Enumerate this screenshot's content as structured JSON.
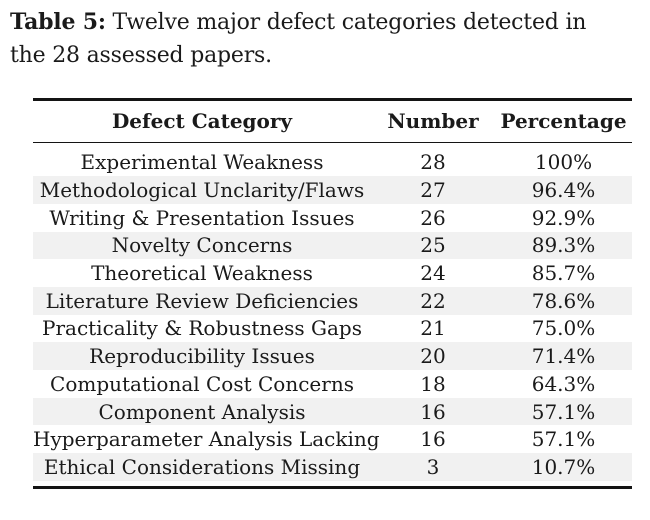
{
  "caption": {
    "label": "Table 5:",
    "line1": "Twelve major defect categories detected in",
    "line2": "the 28 assessed papers."
  },
  "table": {
    "headers": {
      "category": "Defect Category",
      "number": "Number",
      "percentage": "Percentage"
    },
    "rows": [
      {
        "category": "Experimental Weakness",
        "number": "28",
        "percentage": "100%"
      },
      {
        "category": "Methodological Unclarity/Flaws",
        "number": "27",
        "percentage": "96.4%"
      },
      {
        "category": "Writing & Presentation Issues",
        "number": "26",
        "percentage": "92.9%"
      },
      {
        "category": "Novelty Concerns",
        "number": "25",
        "percentage": "89.3%"
      },
      {
        "category": "Theoretical Weakness",
        "number": "24",
        "percentage": "85.7%"
      },
      {
        "category": "Literature Review Deficiencies",
        "number": "22",
        "percentage": "78.6%"
      },
      {
        "category": "Practicality & Robustness Gaps",
        "number": "21",
        "percentage": "75.0%"
      },
      {
        "category": "Reproducibility Issues",
        "number": "20",
        "percentage": "71.4%"
      },
      {
        "category": "Computational Cost Concerns",
        "number": "18",
        "percentage": "64.3%"
      },
      {
        "category": "Component Analysis",
        "number": "16",
        "percentage": "57.1%"
      },
      {
        "category": "Hyperparameter Analysis Lacking",
        "number": "16",
        "percentage": "57.1%"
      },
      {
        "category": "Ethical Considerations Missing",
        "number": "3",
        "percentage": "10.7%"
      }
    ]
  },
  "colors": {
    "text": "#1a1a1a",
    "row_shade": "#f1f1f1",
    "rule": "#141414",
    "background": "#ffffff"
  }
}
